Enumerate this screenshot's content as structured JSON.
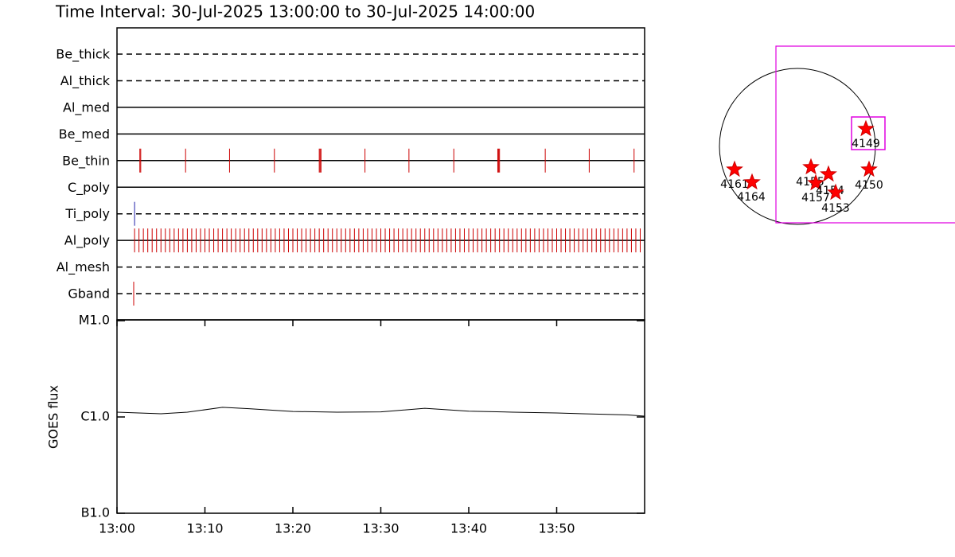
{
  "chart_data": [
    {
      "type": "event",
      "title": "Time Interval: 30-Jul-2025 13:00:00 to 30-Jul-2025 14:00:00",
      "xlim": [
        0,
        60
      ],
      "rows": [
        {
          "name": "Be_thick",
          "style": "dashed",
          "events": []
        },
        {
          "name": "Al_thick",
          "style": "dashed",
          "events": []
        },
        {
          "name": "Al_med",
          "style": "solid",
          "events": []
        },
        {
          "name": "Be_med",
          "style": "solid",
          "events": []
        },
        {
          "name": "Be_thin",
          "style": "solid",
          "color": "#cc0000",
          "events": [
            2.6,
            2.7,
            7.8,
            12.8,
            17.9,
            23.0,
            23.1,
            23.2,
            28.2,
            33.2,
            38.3,
            43.3,
            43.4,
            43.5,
            48.7,
            53.7,
            58.8
          ]
        },
        {
          "name": "C_poly",
          "style": "solid",
          "events": []
        },
        {
          "name": "Ti_poly",
          "style": "dashed",
          "color": "#2222aa",
          "events": [
            2.0
          ]
        },
        {
          "name": "Al_poly",
          "style": "solid",
          "color": "#cc0000",
          "events": [
            2,
            2.5,
            3,
            3.5,
            4,
            4.5,
            5,
            5.5,
            6,
            6.5,
            7,
            7.5,
            8,
            8.5,
            9,
            9.5,
            10,
            10.5,
            11,
            11.5,
            12,
            12.5,
            13,
            13.5,
            14,
            14.5,
            15,
            15.5,
            16,
            16.5,
            17,
            17.5,
            18,
            18.5,
            19,
            19.5,
            20,
            20.5,
            21,
            21.5,
            22,
            22.5,
            23,
            23.5,
            24,
            24.5,
            25,
            25.5,
            26,
            26.5,
            27,
            27.5,
            28,
            28.5,
            29,
            29.5,
            30,
            30.5,
            31,
            31.5,
            32,
            32.5,
            33,
            33.5,
            34,
            34.5,
            35,
            35.5,
            36,
            36.5,
            37,
            37.5,
            38,
            38.5,
            39,
            39.5,
            40,
            40.5,
            41,
            41.5,
            42,
            42.5,
            43,
            43.5,
            44,
            44.5,
            45,
            45.5,
            46,
            46.5,
            47,
            47.5,
            48,
            48.5,
            49,
            49.5,
            50,
            50.5,
            51,
            51.5,
            52,
            52.5,
            53,
            53.5,
            54,
            54.5,
            55,
            55.5,
            56,
            56.5,
            57,
            57.5,
            58,
            58.5,
            59,
            59.5
          ]
        },
        {
          "name": "Al_mesh",
          "style": "dashed",
          "events": []
        },
        {
          "name": "Gband",
          "style": "dashed",
          "color": "#cc0000",
          "events": [
            1.9
          ]
        }
      ]
    },
    {
      "type": "line",
      "ylabel": "GOES flux",
      "x": [
        0,
        5,
        8,
        12,
        15,
        20,
        25,
        30,
        35,
        40,
        45,
        50,
        53,
        58,
        60
      ],
      "values": [
        1.12e-06,
        1.08e-06,
        1.12e-06,
        1.26e-06,
        1.22e-06,
        1.14e-06,
        1.12e-06,
        1.13e-06,
        1.23e-06,
        1.15e-06,
        1.12e-06,
        1.1e-06,
        1.08e-06,
        1.05e-06,
        1.02e-06
      ],
      "color": "#000000",
      "log": true,
      "xlim": [
        0,
        60
      ],
      "xticks": [
        {
          "value": 0,
          "label": "13:00"
        },
        {
          "value": 10,
          "label": "13:10"
        },
        {
          "value": 20,
          "label": "13:20"
        },
        {
          "value": 30,
          "label": "13:30"
        },
        {
          "value": 40,
          "label": "13:40"
        },
        {
          "value": 50,
          "label": "13:50"
        }
      ],
      "ylim": [
        1e-07,
        1e-05
      ],
      "yticks": [
        {
          "value": 1e-07,
          "label": "B1.0"
        },
        {
          "value": 1e-06,
          "label": "C1.0"
        },
        {
          "value": 1e-05,
          "label": "M1.0"
        }
      ]
    }
  ],
  "sun_map": {
    "regions": [
      "4161",
      "4164",
      "4155",
      "4157",
      "4154",
      "4153",
      "4150",
      "4149"
    ]
  }
}
